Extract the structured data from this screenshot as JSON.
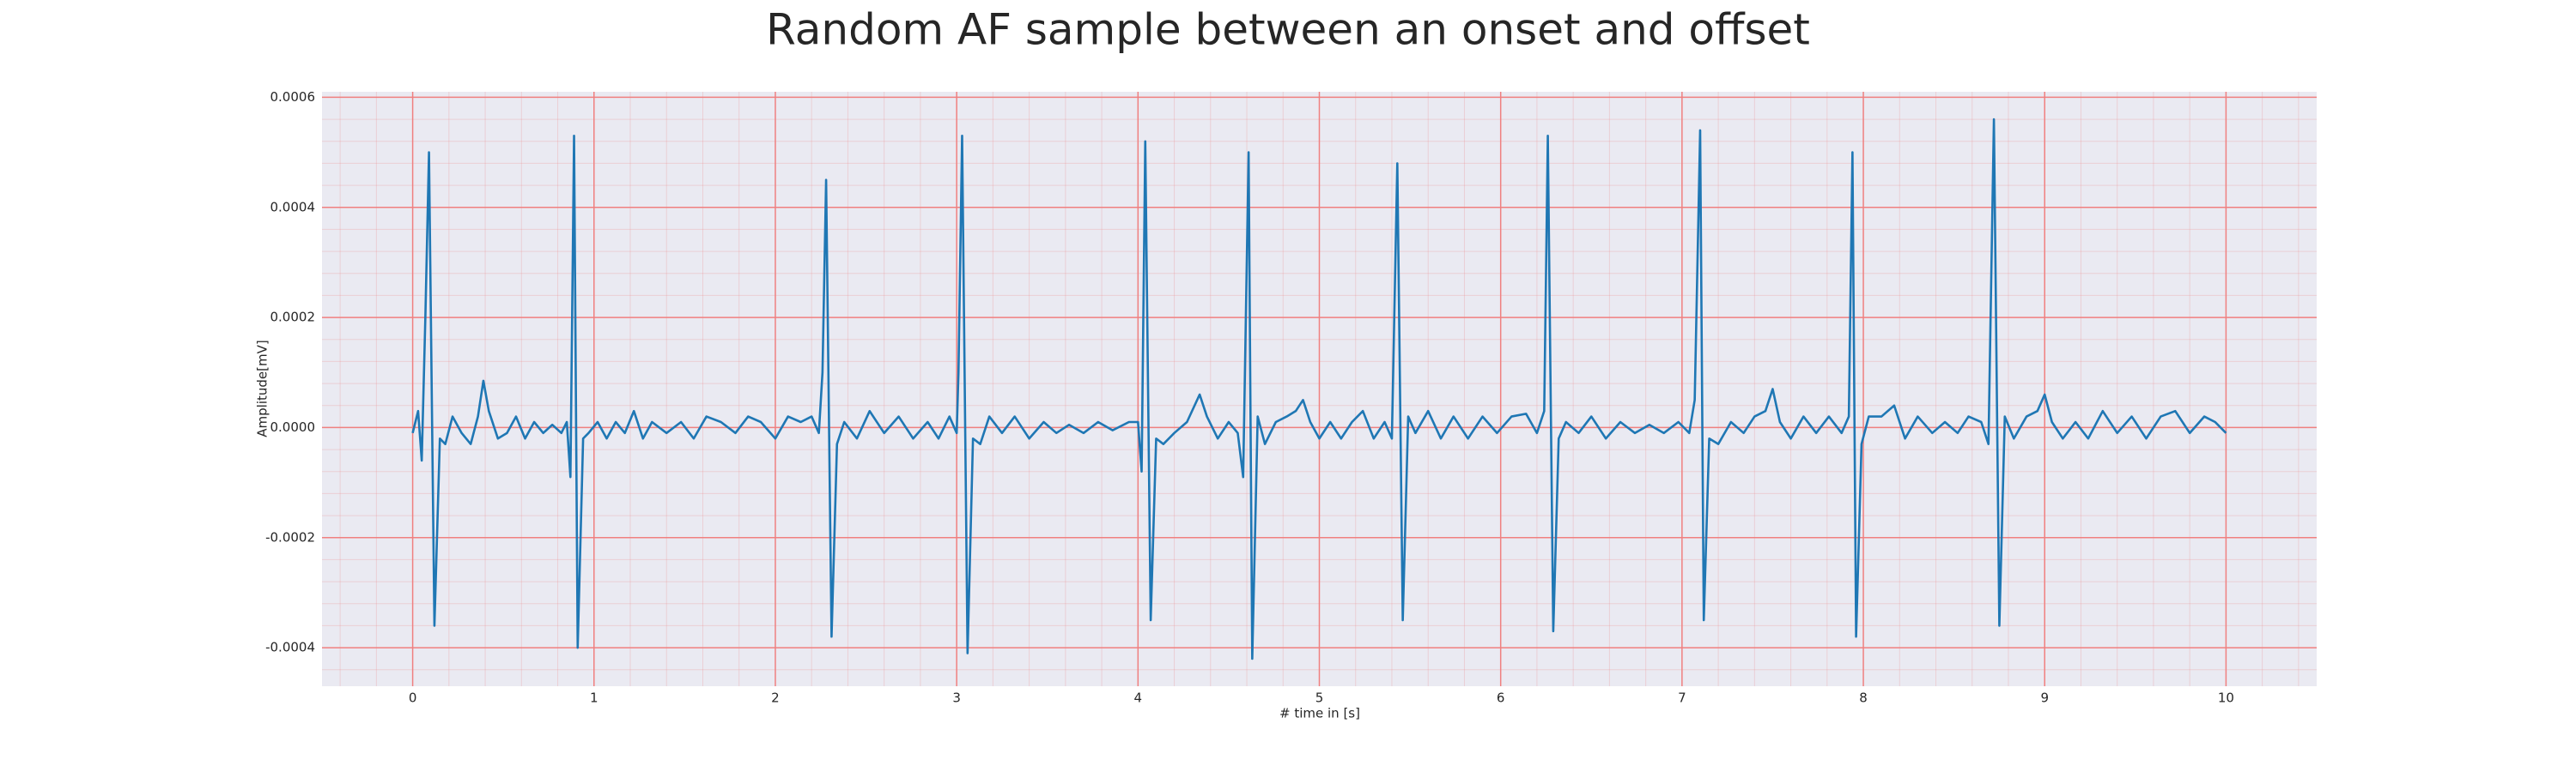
{
  "chart_data": {
    "type": "line",
    "title": "Random AF sample between an onset and offset",
    "xlabel": "# time in [s]",
    "ylabel": "Amplitude[mV]",
    "color": "#1f77b4",
    "grid": true,
    "grid_color": "#f08080",
    "background": "#eaeaf2",
    "xlim": [
      -0.5,
      10.5
    ],
    "ylim": [
      -0.00047,
      0.00061
    ],
    "xticks": [
      0,
      1,
      2,
      3,
      4,
      5,
      6,
      7,
      8,
      9,
      10
    ],
    "yticks": [
      -0.0004,
      -0.0002,
      {
        "value": 0,
        "label": "0.0000"
      },
      0.0002,
      0.0004,
      0.0006
    ],
    "x": [
      0.0,
      0.03,
      0.05,
      0.07,
      0.09,
      0.12,
      0.15,
      0.18,
      0.22,
      0.27,
      0.32,
      0.36,
      0.39,
      0.42,
      0.47,
      0.52,
      0.57,
      0.62,
      0.67,
      0.72,
      0.77,
      0.82,
      0.85,
      0.87,
      0.89,
      0.91,
      0.94,
      0.97,
      1.02,
      1.07,
      1.12,
      1.17,
      1.22,
      1.27,
      1.32,
      1.4,
      1.48,
      1.55,
      1.62,
      1.7,
      1.78,
      1.85,
      1.92,
      2.0,
      2.07,
      2.14,
      2.2,
      2.24,
      2.26,
      2.28,
      2.31,
      2.34,
      2.38,
      2.45,
      2.52,
      2.6,
      2.68,
      2.76,
      2.84,
      2.9,
      2.96,
      3.0,
      3.01,
      3.03,
      3.06,
      3.09,
      3.13,
      3.18,
      3.25,
      3.32,
      3.4,
      3.48,
      3.55,
      3.62,
      3.7,
      3.78,
      3.86,
      3.95,
      4.0,
      4.02,
      4.04,
      4.07,
      4.1,
      4.14,
      4.2,
      4.27,
      4.34,
      4.38,
      4.44,
      4.5,
      4.55,
      4.58,
      4.61,
      4.63,
      4.66,
      4.7,
      4.76,
      4.82,
      4.87,
      4.91,
      4.95,
      5.0,
      5.06,
      5.12,
      5.18,
      5.24,
      5.3,
      5.36,
      5.4,
      5.43,
      5.46,
      5.49,
      5.53,
      5.6,
      5.67,
      5.74,
      5.82,
      5.9,
      5.98,
      6.06,
      6.14,
      6.2,
      6.24,
      6.26,
      6.29,
      6.32,
      6.36,
      6.43,
      6.5,
      6.58,
      6.66,
      6.74,
      6.82,
      6.9,
      6.98,
      7.04,
      7.07,
      7.1,
      7.12,
      7.15,
      7.2,
      7.27,
      7.34,
      7.4,
      7.46,
      7.5,
      7.54,
      7.6,
      7.67,
      7.74,
      7.81,
      7.88,
      7.92,
      7.94,
      7.96,
      7.99,
      8.03,
      8.1,
      8.17,
      8.23,
      8.3,
      8.38,
      8.45,
      8.52,
      8.58,
      8.65,
      8.69,
      8.72,
      8.75,
      8.78,
      8.83,
      8.9,
      8.96,
      9.0,
      9.04,
      9.1,
      9.17,
      9.24,
      9.32,
      9.4,
      9.48,
      9.56,
      9.64,
      9.72,
      9.8,
      9.88,
      9.94,
      10.0
    ],
    "values": [
      -1e-05,
      3e-05,
      -6e-05,
      0.0002,
      0.0005,
      -0.00036,
      -2e-05,
      -3e-05,
      2e-05,
      -1e-05,
      -3e-05,
      2e-05,
      8.5e-05,
      3e-05,
      -2e-05,
      -1e-05,
      2e-05,
      -2e-05,
      1e-05,
      -1e-05,
      5e-06,
      -1e-05,
      1e-05,
      -9e-05,
      0.00053,
      -0.0004,
      -2e-05,
      -1e-05,
      1e-05,
      -2e-05,
      1e-05,
      -1e-05,
      3e-05,
      -2e-05,
      1e-05,
      -1e-05,
      1e-05,
      -2e-05,
      2e-05,
      1e-05,
      -1e-05,
      2e-05,
      1e-05,
      -2e-05,
      2e-05,
      1e-05,
      2e-05,
      -1e-05,
      0.0001,
      0.00045,
      -0.00038,
      -3e-05,
      1e-05,
      -2e-05,
      3e-05,
      -1e-05,
      2e-05,
      -2e-05,
      1e-05,
      -2e-05,
      2e-05,
      -1e-05,
      0.0001,
      0.00053,
      -0.00041,
      -2e-05,
      -3e-05,
      2e-05,
      -1e-05,
      2e-05,
      -2e-05,
      1e-05,
      -1e-05,
      5e-06,
      -1e-05,
      1e-05,
      -5e-06,
      1e-05,
      1e-05,
      -8e-05,
      0.00052,
      -0.00035,
      -2e-05,
      -3e-05,
      -1e-05,
      1e-05,
      6e-05,
      2e-05,
      -2e-05,
      1e-05,
      -1e-05,
      -9e-05,
      0.0005,
      -0.00042,
      2e-05,
      -3e-05,
      1e-05,
      2e-05,
      3e-05,
      5e-05,
      1e-05,
      -2e-05,
      1e-05,
      -2e-05,
      1e-05,
      3e-05,
      -2e-05,
      1e-05,
      -2e-05,
      0.00048,
      -0.00035,
      2e-05,
      -1e-05,
      3e-05,
      -2e-05,
      2e-05,
      -2e-05,
      2e-05,
      -1e-05,
      2e-05,
      2.5e-05,
      -1e-05,
      3e-05,
      0.00053,
      -0.00037,
      -2e-05,
      1e-05,
      -1e-05,
      2e-05,
      -2e-05,
      1e-05,
      -1e-05,
      5e-06,
      -1e-05,
      1e-05,
      -1e-05,
      5e-05,
      0.00054,
      -0.00035,
      -2e-05,
      -3e-05,
      1e-05,
      -1e-05,
      2e-05,
      3e-05,
      7e-05,
      1e-05,
      -2e-05,
      2e-05,
      -1e-05,
      2e-05,
      -1e-05,
      2e-05,
      0.0005,
      -0.00038,
      -3e-05,
      2e-05,
      2e-05,
      4e-05,
      -2e-05,
      2e-05,
      -1e-05,
      1e-05,
      -1e-05,
      2e-05,
      1e-05,
      -3e-05,
      0.00056,
      -0.00036,
      2e-05,
      -2e-05,
      2e-05,
      3e-05,
      6e-05,
      1e-05,
      -2e-05,
      1e-05,
      -2e-05,
      3e-05,
      -1e-05,
      2e-05,
      -2e-05,
      2e-05,
      3e-05,
      -1e-05,
      2e-05,
      1e-05,
      -1e-05
    ]
  }
}
